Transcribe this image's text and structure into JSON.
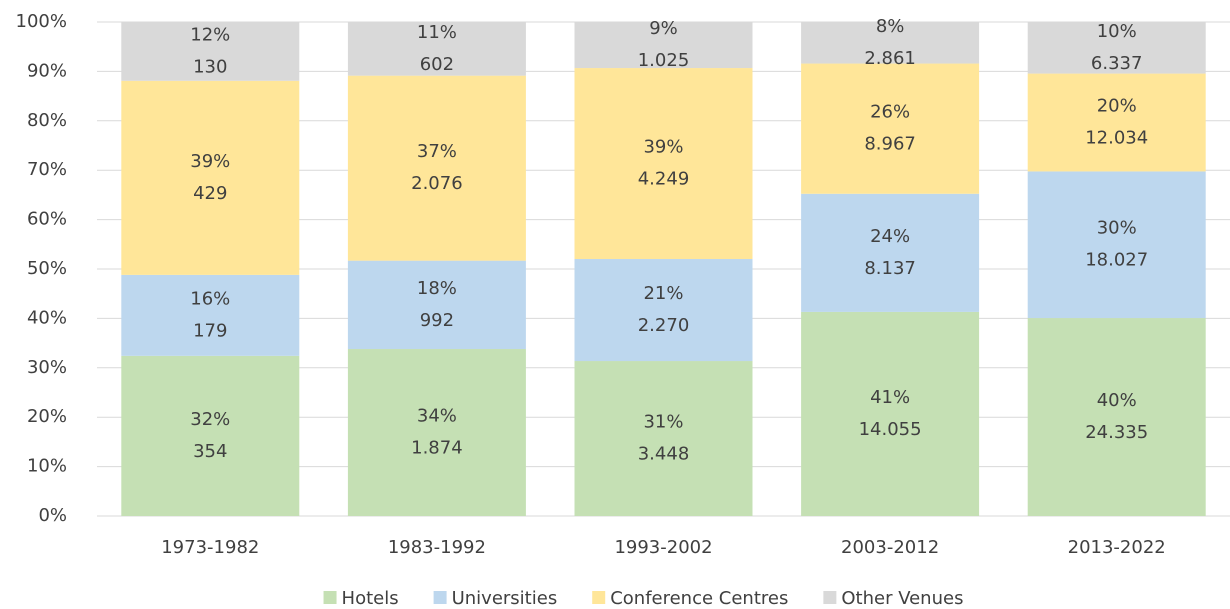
{
  "chart_data": {
    "type": "stacked_bar_100",
    "categories": [
      "1973-1982",
      "1983-1992",
      "1993-2002",
      "2003-2012",
      "2013-2022"
    ],
    "series": [
      {
        "name": "Hotels",
        "color": "#c5e0b4",
        "values": [
          32.42,
          33.8,
          31.37,
          41.31,
          40.07
        ],
        "value_labels": [
          "32%",
          "34%",
          "31%",
          "41%",
          "40%"
        ],
        "count_labels": [
          "354",
          "1.874",
          "3.448",
          "14.055",
          "24.335"
        ]
      },
      {
        "name": "Universities",
        "color": "#bdd7ee",
        "values": [
          16.39,
          17.89,
          20.65,
          23.92,
          29.68
        ],
        "value_labels": [
          "16%",
          "18%",
          "21%",
          "24%",
          "30%"
        ],
        "count_labels": [
          "179",
          "992",
          "2.270",
          "8.137",
          "18.027"
        ]
      },
      {
        "name": "Conference Centres",
        "color": "#ffe699",
        "values": [
          39.29,
          37.45,
          38.66,
          26.36,
          19.81
        ],
        "value_labels": [
          "39%",
          "37%",
          "39%",
          "26%",
          "20%"
        ],
        "count_labels": [
          "429",
          "2.076",
          "4.249",
          "8.967",
          "12.034"
        ]
      },
      {
        "name": "Other Venues",
        "color": "#d9d9d9",
        "values": [
          11.9,
          10.86,
          9.32,
          8.41,
          10.43
        ],
        "value_labels": [
          "12%",
          "11%",
          "9%",
          "8%",
          "10%"
        ],
        "count_labels": [
          "130",
          "602",
          "1.025",
          "2.861",
          "6.337"
        ]
      }
    ],
    "ylim": [
      0,
      100
    ],
    "yticks": [
      {
        "value": 0,
        "label": "0%"
      },
      {
        "value": 10,
        "label": "10%"
      },
      {
        "value": 20,
        "label": "20%"
      },
      {
        "value": 30,
        "label": "30%"
      },
      {
        "value": 40,
        "label": "40%"
      },
      {
        "value": 50,
        "label": "50%"
      },
      {
        "value": 60,
        "label": "60%"
      },
      {
        "value": 70,
        "label": "70%"
      },
      {
        "value": 80,
        "label": "80%"
      },
      {
        "value": 90,
        "label": "90%"
      },
      {
        "value": 100,
        "label": "100%"
      }
    ],
    "grid": true,
    "legend": "bottom"
  }
}
